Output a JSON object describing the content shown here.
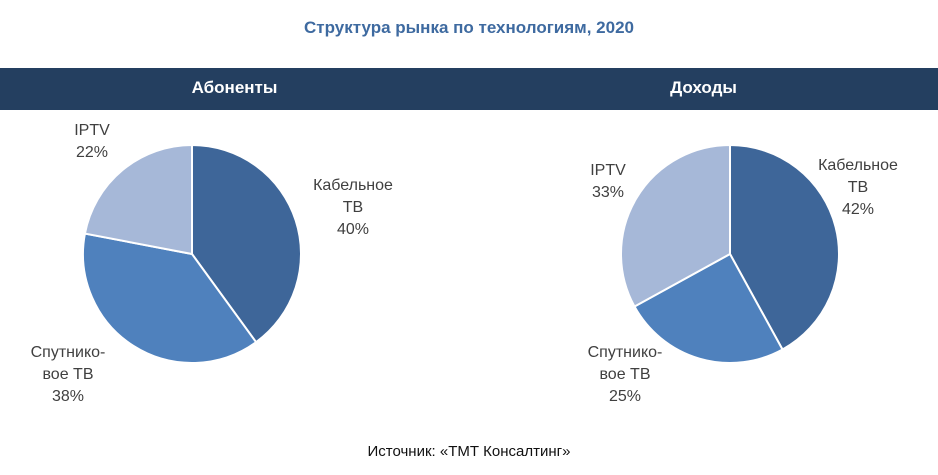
{
  "title": "Структура рынка по технологиям, 2020",
  "source": "Источник: «ТМТ Консалтинг»",
  "colors": {
    "title": "#3e6aa0",
    "header_band": "#243f60",
    "cable": "#3e6699",
    "satellite": "#4f81bd",
    "iptv": "#a6b8d8",
    "slice_border": "#ffffff"
  },
  "chart_data": [
    {
      "type": "pie",
      "title": "Абоненты",
      "slices": [
        {
          "label_lines": [
            "Кабельное",
            "ТВ"
          ],
          "value": 40,
          "value_label": "40%",
          "color_key": "cable"
        },
        {
          "label_lines": [
            "Спутнико-",
            "вое ТВ"
          ],
          "value": 38,
          "value_label": "38%",
          "color_key": "satellite"
        },
        {
          "label_lines": [
            "IPTV"
          ],
          "value": 22,
          "value_label": "22%",
          "color_key": "iptv"
        }
      ]
    },
    {
      "type": "pie",
      "title": "Доходы",
      "slices": [
        {
          "label_lines": [
            "Кабельное",
            "ТВ"
          ],
          "value": 42,
          "value_label": "42%",
          "color_key": "cable"
        },
        {
          "label_lines": [
            "Спутнико-",
            "вое ТВ"
          ],
          "value": 25,
          "value_label": "25%",
          "color_key": "satellite"
        },
        {
          "label_lines": [
            "IPTV"
          ],
          "value": 33,
          "value_label": "33%",
          "color_key": "iptv"
        }
      ]
    }
  ]
}
